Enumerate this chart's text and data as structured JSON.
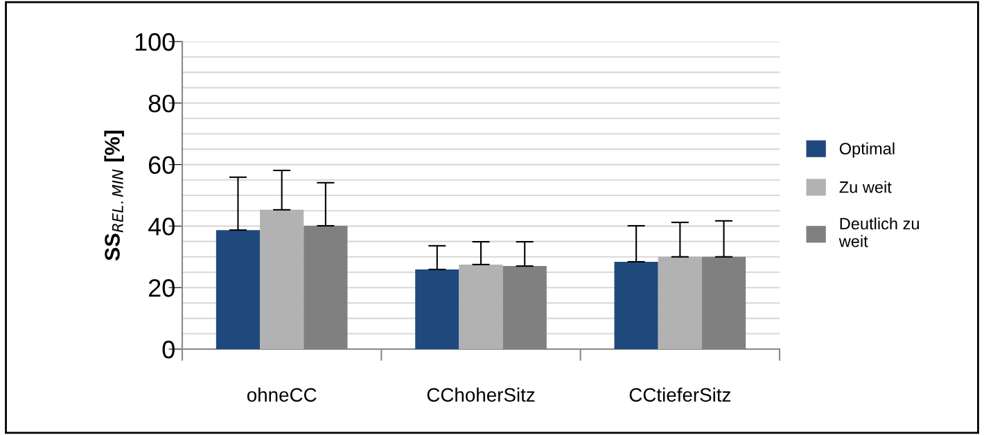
{
  "chart_data": {
    "type": "bar",
    "ylabel": "SS$_{REL.MIN}$ [%]",
    "categories": [
      "ohneCC",
      "CChoherSitz",
      "CCtieferSitz"
    ],
    "series": [
      {
        "name": "Optimal",
        "color": "#1f497d",
        "values": [
          38.7,
          25.9,
          28.4
        ],
        "errors": [
          [
            38.7,
            55.9
          ],
          [
            25.9,
            33.6
          ],
          [
            28.4,
            40.1
          ]
        ]
      },
      {
        "name": "Zu weit",
        "color": "#b2b2b2",
        "values": [
          45.3,
          27.5,
          30.0
        ],
        "errors": [
          [
            45.3,
            58.1
          ],
          [
            27.5,
            34.9
          ],
          [
            30.0,
            41.2
          ]
        ]
      },
      {
        "name": "Deutlich zu weit",
        "color": "#808080",
        "values": [
          40.1,
          27.0,
          30.0
        ],
        "errors": [
          [
            40.1,
            54.1
          ],
          [
            27.0,
            34.9
          ],
          [
            30.0,
            41.7
          ]
        ]
      }
    ],
    "ylim": [
      0,
      100
    ],
    "yticks": [
      0,
      {
        "value": 5,
        "label": null
      },
      {
        "value": 10,
        "label": null
      },
      {
        "value": 15,
        "label": null
      },
      20,
      {
        "value": 25,
        "label": null
      },
      {
        "value": 30,
        "label": null
      },
      {
        "value": 35,
        "label": null
      },
      40,
      {
        "value": 45,
        "label": null
      },
      {
        "value": 50,
        "label": null
      },
      {
        "value": 55,
        "label": null
      },
      60,
      {
        "value": 65,
        "label": null
      },
      {
        "value": 70,
        "label": null
      },
      {
        "value": 75,
        "label": null
      },
      80,
      {
        "value": 85,
        "label": null
      },
      {
        "value": 90,
        "label": null
      },
      {
        "value": 95,
        "label": null
      },
      100
    ],
    "grid": "y",
    "legend": "right"
  }
}
